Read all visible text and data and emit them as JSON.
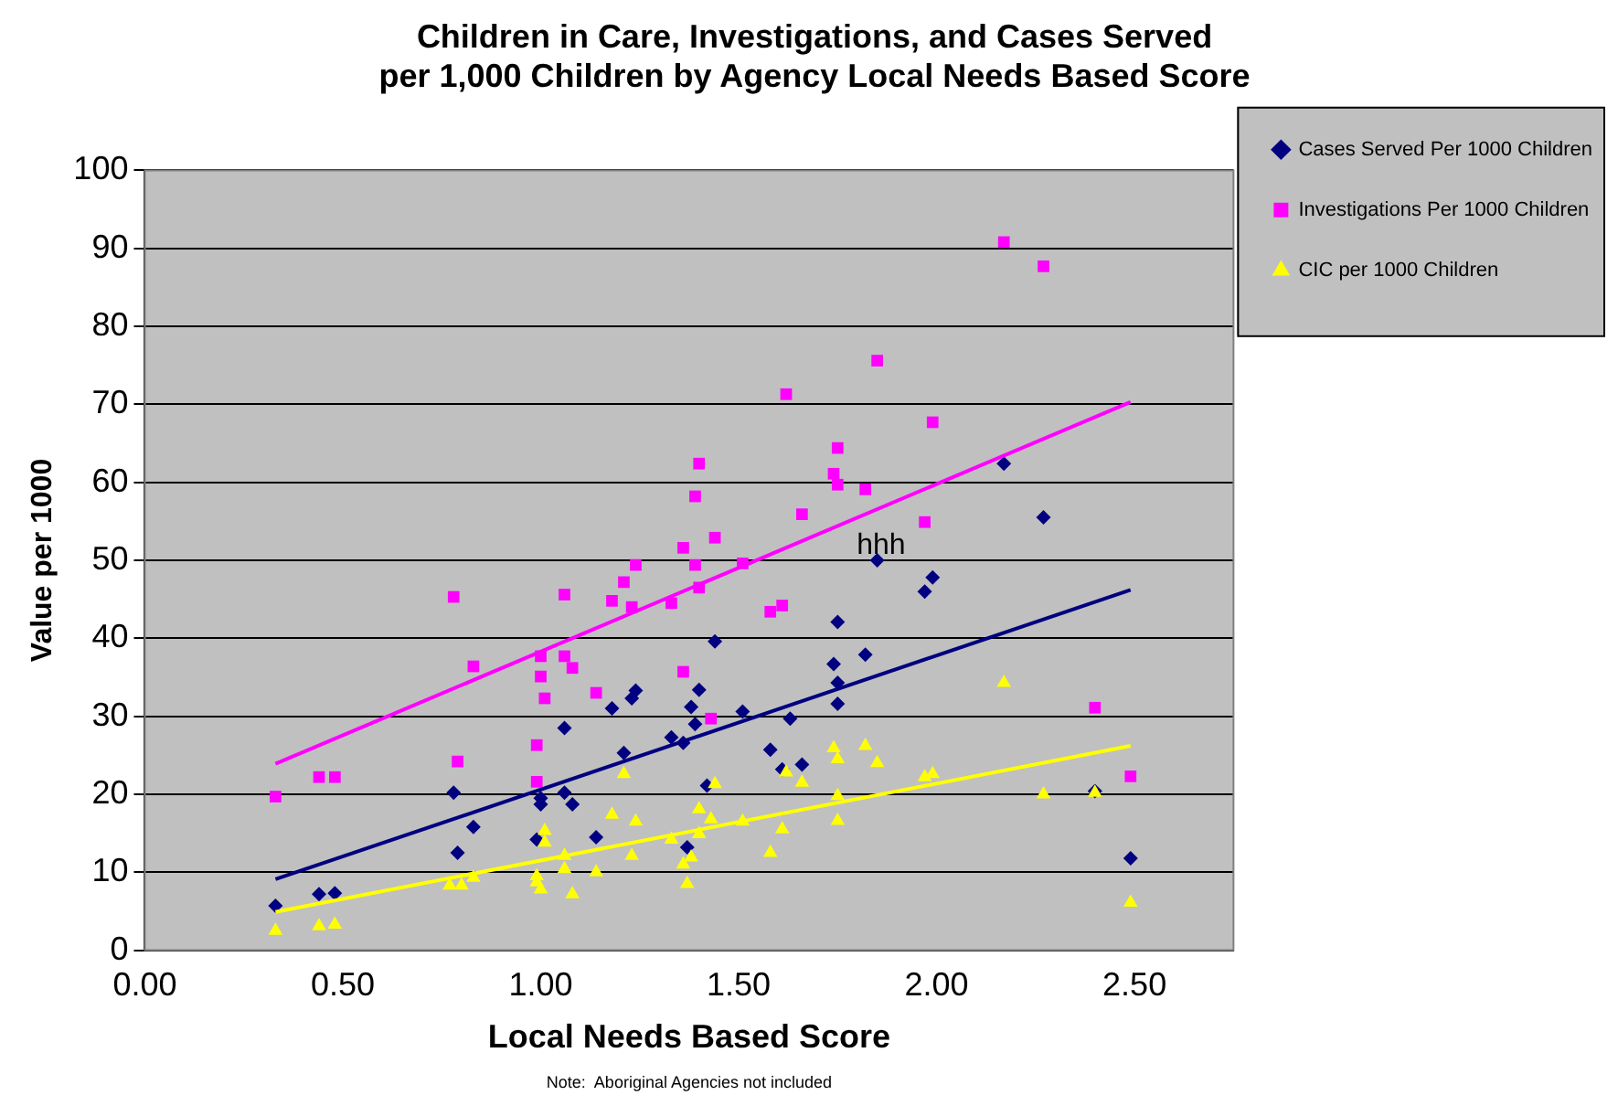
{
  "chart_data": {
    "type": "scatter",
    "title": "Children in Care, Investigations, and Cases Served\nper 1,000 Children by Agency Local Needs Based Score",
    "xlabel": "Local Needs Based Score",
    "ylabel": "Value per 1000",
    "xlim": [
      0,
      2.75
    ],
    "xticks": [
      {
        "value": 0,
        "label": "0.00"
      },
      {
        "value": 0.5,
        "label": "0.50"
      },
      {
        "value": 1,
        "label": "1.00"
      },
      {
        "value": 1.5,
        "label": "1.50"
      },
      {
        "value": 2,
        "label": "2.00"
      },
      {
        "value": 2.5,
        "label": "2.50"
      }
    ],
    "ylim": [
      0,
      100
    ],
    "yticks": [
      0,
      10,
      20,
      30,
      40,
      50,
      60,
      70,
      80,
      90,
      100
    ],
    "grid": "y",
    "legend": "right",
    "annotations": [
      "Note:  Aboriginal Agencies not included",
      {
        "text": "hhh",
        "x": 1.86,
        "y": 50
      }
    ],
    "series": [
      {
        "name": "Cases Served Per 1000 Children",
        "color": "#000080",
        "marker": "diamond",
        "x": [
          0.33,
          0.44,
          0.48,
          0.78,
          0.79,
          0.83,
          0.99,
          1.0,
          1.0,
          1.06,
          1.06,
          1.08,
          1.14,
          1.18,
          1.21,
          1.23,
          1.24,
          1.33,
          1.36,
          1.37,
          1.38,
          1.4,
          1.39,
          1.44,
          1.42,
          1.51,
          1.58,
          1.61,
          1.66,
          1.63,
          1.74,
          1.75,
          1.75,
          1.75,
          1.82,
          1.85,
          1.97,
          1.99,
          2.17,
          2.27,
          2.4,
          2.49
        ],
        "values": [
          5.7,
          7.2,
          7.3,
          20.2,
          12.5,
          15.8,
          14.2,
          19.5,
          18.7,
          28.5,
          20.2,
          18.7,
          14.5,
          31.0,
          25.3,
          32.3,
          33.3,
          27.3,
          26.6,
          13.2,
          31.2,
          33.4,
          29.0,
          39.6,
          21.1,
          30.6,
          25.7,
          23.2,
          23.8,
          29.7,
          36.7,
          42.1,
          34.3,
          31.6,
          37.9,
          50.0,
          46.0,
          47.8,
          62.4,
          55.5,
          20.4,
          11.8
        ]
      },
      {
        "name": "Investigations Per 1000 Children",
        "color": "#ff00ff",
        "marker": "square",
        "x": [
          0.33,
          0.44,
          0.48,
          0.78,
          0.79,
          0.83,
          0.99,
          0.99,
          1.0,
          1.0,
          1.01,
          1.06,
          1.06,
          1.08,
          1.14,
          1.18,
          1.21,
          1.23,
          1.24,
          1.33,
          1.36,
          1.36,
          1.39,
          1.4,
          1.39,
          1.4,
          1.44,
          1.43,
          1.51,
          1.58,
          1.61,
          1.62,
          1.66,
          1.74,
          1.75,
          1.75,
          1.82,
          1.85,
          1.97,
          1.99,
          2.17,
          2.27,
          2.4,
          2.49
        ],
        "values": [
          19.7,
          22.2,
          22.2,
          45.3,
          24.2,
          36.4,
          26.3,
          21.6,
          37.7,
          35.1,
          32.3,
          45.6,
          37.7,
          36.2,
          33.0,
          44.8,
          47.2,
          44.0,
          49.4,
          44.5,
          51.6,
          35.7,
          58.2,
          62.4,
          49.4,
          46.5,
          52.9,
          29.7,
          49.6,
          43.4,
          44.2,
          71.3,
          55.9,
          61.1,
          64.4,
          59.7,
          59.1,
          75.6,
          54.9,
          67.7,
          90.8,
          87.7,
          31.1,
          22.3
        ]
      },
      {
        "name": "CIC per 1000 Children",
        "color": "#ffff00",
        "marker": "triangle",
        "x": [
          0.33,
          0.44,
          0.48,
          0.77,
          0.8,
          0.83,
          0.99,
          0.99,
          1.0,
          1.01,
          1.01,
          1.06,
          1.06,
          1.08,
          1.14,
          1.18,
          1.21,
          1.23,
          1.24,
          1.33,
          1.36,
          1.37,
          1.38,
          1.4,
          1.4,
          1.43,
          1.44,
          1.51,
          1.58,
          1.61,
          1.62,
          1.66,
          1.74,
          1.75,
          1.75,
          1.75,
          1.82,
          1.85,
          1.97,
          1.99,
          2.17,
          2.27,
          2.4,
          2.49
        ],
        "values": [
          2.5,
          3.1,
          3.3,
          8.3,
          8.3,
          9.3,
          9.5,
          8.7,
          7.8,
          15.3,
          13.8,
          12.1,
          10.4,
          7.2,
          10.0,
          17.4,
          22.6,
          12.1,
          16.5,
          14.2,
          11.0,
          8.5,
          11.9,
          14.9,
          18.1,
          16.8,
          21.3,
          16.5,
          12.5,
          15.5,
          22.8,
          21.5,
          25.9,
          24.5,
          19.8,
          16.6,
          26.2,
          24.0,
          22.2,
          22.6,
          34.3,
          20.0,
          20.2,
          6.1
        ]
      },
      {
        "type": "line",
        "color": "#ff00ff",
        "marker": "none",
        "x": [
          0.33,
          2.49
        ],
        "values": [
          23.9,
          70.3
        ]
      },
      {
        "type": "line",
        "color": "#000080",
        "marker": "none",
        "x": [
          0.33,
          2.49
        ],
        "values": [
          9.1,
          46.2
        ]
      },
      {
        "type": "line",
        "color": "#ffff00",
        "marker": "none",
        "x": [
          0.33,
          2.49
        ],
        "values": [
          4.9,
          26.2
        ]
      }
    ]
  }
}
